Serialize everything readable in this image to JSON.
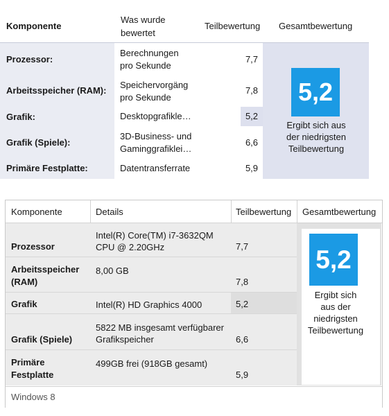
{
  "panel1": {
    "headers": {
      "component": "Komponente",
      "what_line1": "Was wurde",
      "what_line2": "bewertet",
      "partial": "Teilbewertung",
      "total": "Gesamtbewertung"
    },
    "rows": [
      {
        "label": "Prozessor:",
        "detail_line1": "Berechnungen",
        "detail_line2": "pro Sekunde",
        "score": "7,7"
      },
      {
        "label": "Arbeitsspeicher (RAM):",
        "detail_line1": "Speichervorgäng",
        "detail_line2": "pro Sekunde",
        "score": "7,8"
      },
      {
        "label": "Grafik:",
        "detail_line1": "Desktopgrafikle…",
        "detail_line2": "",
        "score": "5,2"
      },
      {
        "label": "Grafik (Spiele):",
        "detail_line1": "3D-Business- und",
        "detail_line2": "Gaminggrafiklei…",
        "score": "6,6"
      },
      {
        "label": "Primäre Festplatte:",
        "detail_line1": "Datentransferrate",
        "detail_line2": "",
        "score": "5,9"
      }
    ],
    "total_score": "5,2",
    "note_line1": "Ergibt sich aus",
    "note_line2": "der niedrigsten",
    "note_line3": "Teilbewertung",
    "badge_color": "#1b9ae4"
  },
  "panel2": {
    "headers": {
      "component": "Komponente",
      "details": "Details",
      "partial": "Teilbewertung",
      "total": "Gesamtbewertung"
    },
    "rows": [
      {
        "label_line1": "Prozessor",
        "label_line2": "",
        "detail_line1": "Intel(R) Core(TM) i7-3632QM",
        "detail_line2": "CPU @ 2.20GHz",
        "score": "7,7"
      },
      {
        "label_line1": "Arbeitsspeicher",
        "label_line2": "(RAM)",
        "detail_line1": "",
        "detail_line2": "8,00 GB",
        "score": "7,8"
      },
      {
        "label_line1": "Grafik",
        "label_line2": "",
        "detail_line1": "Intel(R) HD Graphics 4000",
        "detail_line2": "",
        "score": "5,2"
      },
      {
        "label_line1": "Grafik (Spiele)",
        "label_line2": "",
        "detail_line1": "5822 MB insgesamt verfügbarer",
        "detail_line2": "Grafikspeicher",
        "score": "6,6"
      },
      {
        "label_line1": "Primäre",
        "label_line2": "Festplatte",
        "detail_line1": "",
        "detail_line2": "499GB frei (918GB gesamt)",
        "score": "5,9"
      }
    ],
    "total_score": "5,2",
    "note_line1": "Ergibt sich",
    "note_line2": "aus der",
    "note_line3": "niedrigsten",
    "note_line4": "Teilbewertung",
    "footer": "Windows 8",
    "badge_color": "#1b9ae4"
  }
}
